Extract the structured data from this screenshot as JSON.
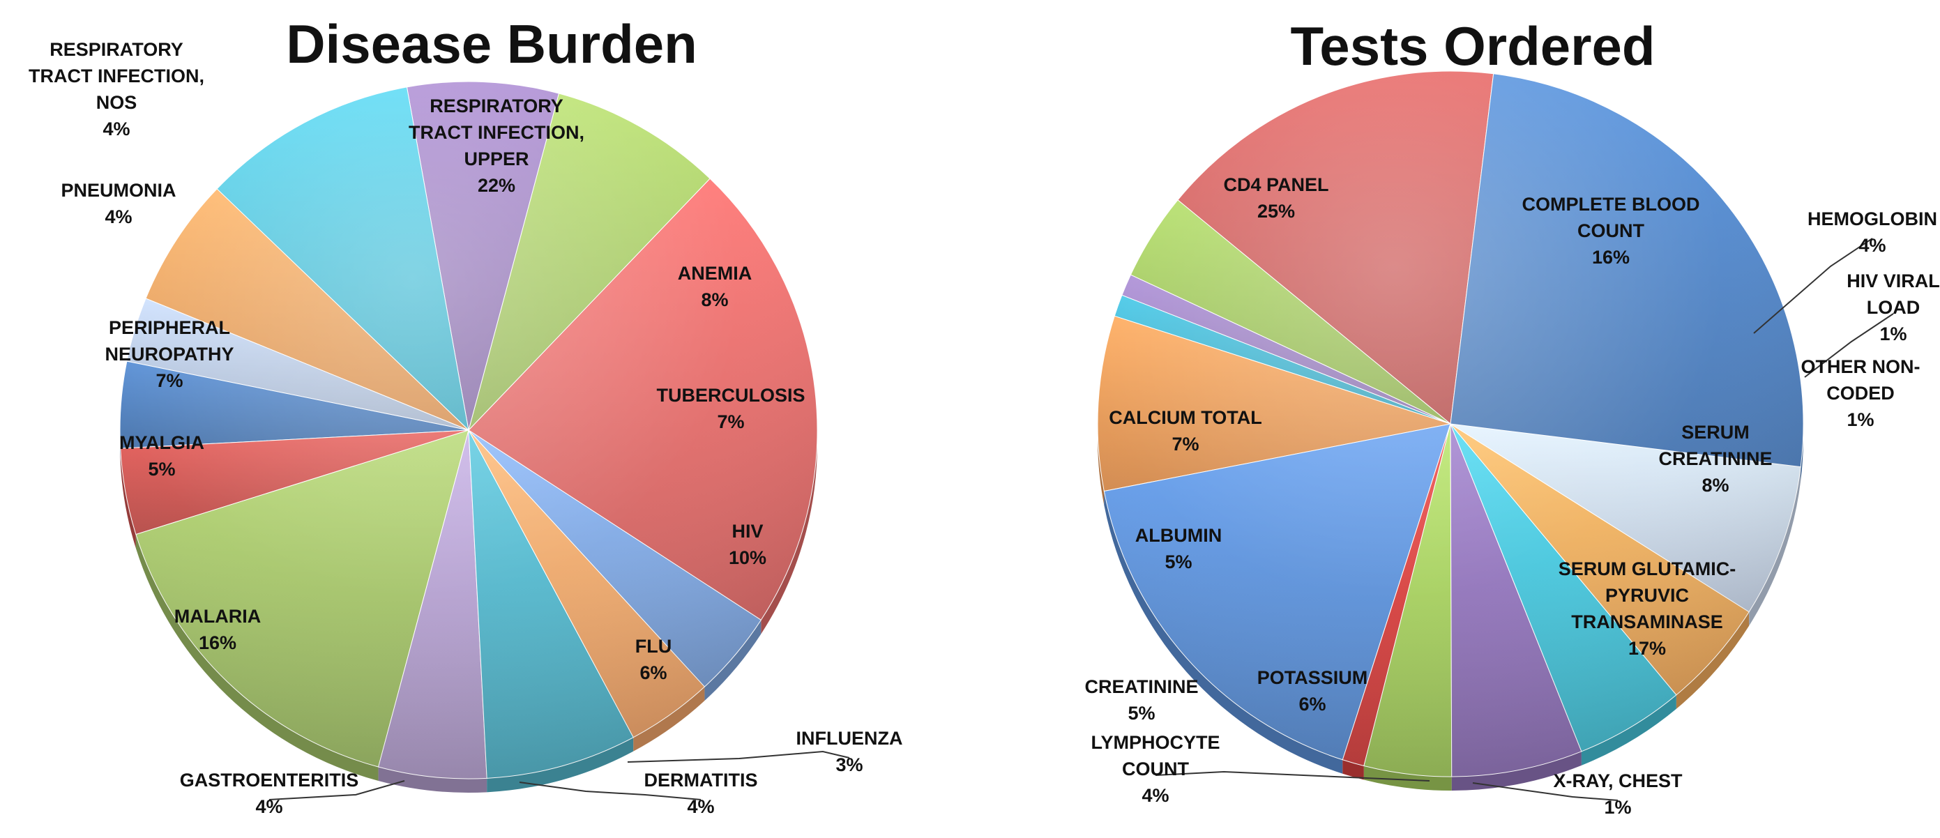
{
  "chart_data": [
    {
      "type": "pie",
      "title": "Disease Burden",
      "categories": [
        "RESPIRATORY TRACT INFECTION, UPPER",
        "ANEMIA",
        "TUBERCULOSIS",
        "HIV",
        "FLU",
        "INFLUENZA",
        "DERMATITIS",
        "GASTROENTERITIS",
        "MALARIA",
        "MYALGIA",
        "PERIPHERAL NEUROPATHY",
        "PNEUMONIA",
        "RESPIRATORY TRACT INFECTION, NOS"
      ],
      "values": [
        22,
        8,
        7,
        10,
        6,
        3,
        4,
        4,
        16,
        5,
        7,
        4,
        4
      ],
      "labels": [
        [
          "RESPIRATORY",
          "TRACT INFECTION,",
          "UPPER",
          "22%"
        ],
        [
          "ANEMIA",
          "8%"
        ],
        [
          "TUBERCULOSIS",
          "7%"
        ],
        [
          "HIV",
          "10%"
        ],
        [
          "FLU",
          "6%"
        ],
        [
          "INFLUENZA",
          "3%"
        ],
        [
          "DERMATITIS",
          "4%"
        ],
        [
          "GASTROENTERITIS",
          "4%"
        ],
        [
          "MALARIA",
          "16%"
        ],
        [
          "MYALGIA",
          "5%"
        ],
        [
          "PERIPHERAL",
          "NEUROPATHY",
          "7%"
        ],
        [
          "PNEUMONIA",
          "4%"
        ],
        [
          "RESPIRATORY",
          "TRACT INFECTION,",
          "NOS",
          "4%"
        ]
      ],
      "colors": [
        "#e46c6a",
        "#a9cc67",
        "#9b7fbe",
        "#4fc3db",
        "#f2a25c",
        "#b8c9e3",
        "#4d7fbf",
        "#cf5450",
        "#a3c268",
        "#b39fce",
        "#52b4c9",
        "#f5a76b",
        "#7ea6e0"
      ],
      "legend": "none"
    },
    {
      "type": "pie",
      "title": "Tests Ordered",
      "categories": [
        "COMPLETE BLOOD COUNT",
        "HEMOGLOBIN",
        "HIV VIRAL LOAD",
        "OTHER NON-CODED",
        "SERUM CREATININE",
        "SERUM GLUTAMIC-PYRUVIC TRANSAMINASE",
        "X-RAY, CHEST",
        "LYMPHOCYTE COUNT",
        "POTASSIUM",
        "CREATININE",
        "ALBUMIN",
        "CALCIUM TOTAL",
        "CD4 PANEL"
      ],
      "values": [
        16,
        4,
        1,
        1,
        8,
        17,
        1,
        4,
        6,
        5,
        5,
        7,
        25
      ],
      "labels": [
        [
          "COMPLETE BLOOD",
          "COUNT",
          "16%"
        ],
        [
          "HEMOGLOBIN",
          "4%"
        ],
        [
          "HIV VIRAL",
          "LOAD",
          "1%"
        ],
        [
          "OTHER NON-",
          "CODED",
          "1%"
        ],
        [
          "SERUM",
          "CREATININE",
          "8%"
        ],
        [
          "SERUM GLUTAMIC-",
          "PYRUVIC",
          "TRANSAMINASE",
          "17%"
        ],
        [
          "X-RAY, CHEST",
          "1%"
        ],
        [
          "LYMPHOCYTE",
          "COUNT",
          "4%"
        ],
        [
          "POTASSIUM",
          "6%"
        ],
        [
          "CREATININE",
          "5%"
        ],
        [
          "ALBUMIN",
          "5%"
        ],
        [
          "CALCIUM TOTAL",
          "7%"
        ],
        [
          "CD4 PANEL",
          "25%"
        ]
      ],
      "colors": [
        "#cf5b59",
        "#9fc65a",
        "#9a7fc0",
        "#3eb3cf",
        "#ef9a55",
        "#5b90d8",
        "#d6403e",
        "#a5ce5e",
        "#9073b9",
        "#46c3d9",
        "#f3ac5d",
        "#cbd9ee",
        "#4f84c7"
      ],
      "legend": "none"
    }
  ]
}
